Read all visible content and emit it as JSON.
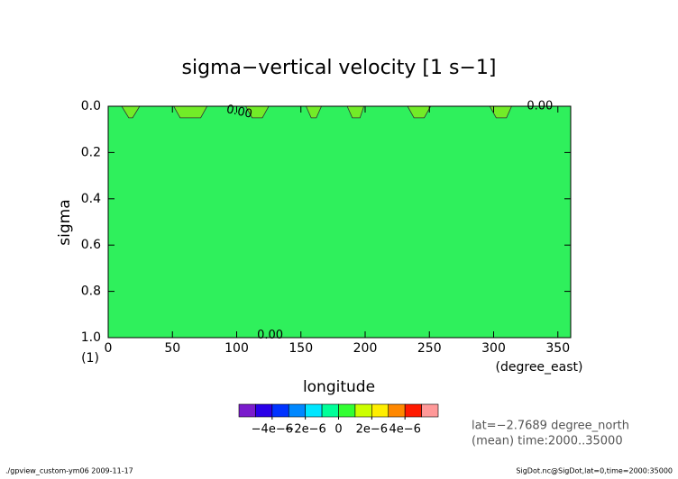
{
  "chart_data": {
    "type": "contour",
    "title": "sigma−vertical velocity [1 s−1]",
    "xlabel": "longitude",
    "xunit": "(degree_east)",
    "ylabel": "sigma",
    "yunit": "(1)",
    "xlim": [
      0,
      360
    ],
    "xticks": [
      0,
      50,
      100,
      150,
      200,
      250,
      300,
      350
    ],
    "ylim": [
      1.0,
      0.0
    ],
    "yticks": [
      {
        "value": 0,
        "label": "0.0"
      },
      0.2,
      0.4,
      0.6,
      0.8,
      {
        "value": 1,
        "label": "1.0"
      }
    ],
    "fill_color": "#2ff05c",
    "patches": [
      {
        "color": "#72ec28",
        "x": [
          10.5,
          16,
          19,
          24.5
        ],
        "y": [
          0,
          0.05,
          0.05,
          0
        ]
      },
      {
        "color": "#72ec28",
        "x": [
          51,
          56,
          72,
          77
        ],
        "y": [
          0,
          0.05,
          0.05,
          0
        ]
      },
      {
        "color": "#72ec28",
        "x": [
          107,
          112,
          120,
          125
        ],
        "y": [
          0,
          0.05,
          0.05,
          0
        ]
      },
      {
        "color": "#72ec28",
        "x": [
          154,
          158,
          162,
          166
        ],
        "y": [
          0,
          0.05,
          0.05,
          0
        ]
      },
      {
        "color": "#72ec28",
        "x": [
          186,
          190,
          196,
          199
        ],
        "y": [
          0,
          0.05,
          0.05,
          0
        ]
      },
      {
        "color": "#72ec28",
        "x": [
          233,
          238,
          246,
          251
        ],
        "y": [
          0,
          0.05,
          0.05,
          0
        ]
      },
      {
        "color": "#72ec28",
        "x": [
          297,
          302,
          310,
          314
        ],
        "y": [
          0,
          0.05,
          0.05,
          0
        ]
      }
    ],
    "contour_labels": [
      {
        "text": "0.00",
        "x": 102,
        "y": 0.025
      },
      {
        "text": "0.00",
        "x": 336,
        "y": 0.0
      },
      {
        "text": "0.00",
        "x": 126,
        "y": 0.99
      }
    ],
    "colorbar": {
      "colors": [
        "#7a1ccc",
        "#2a00e8",
        "#0033ff",
        "#0088ff",
        "#00e6ff",
        "#00ff99",
        "#33ff33",
        "#ccff00",
        "#ffee00",
        "#ff8800",
        "#ff1a00",
        "#ff9999"
      ],
      "levels": [
        -6e-06,
        -5e-06,
        -4e-06,
        -3e-06,
        -2e-06,
        -1e-06,
        0,
        1e-06,
        2e-06,
        3e-06,
        4e-06,
        5e-06,
        6e-06
      ],
      "ticks": [
        {
          "value": -4e-06,
          "label": "−4e−6"
        },
        {
          "value": -2e-06,
          "label": "−2e−6"
        },
        0,
        {
          "value": 2e-06,
          "label": "2e−6"
        },
        {
          "value": 4e-06,
          "label": "4e−6"
        }
      ]
    },
    "notes": [
      "lat=−2.7689 degree_north",
      "(mean) time:2000..35000"
    ],
    "footer_left": "./gpview_custom-ym06  2009-11-17",
    "footer_right": "SigDot.nc@SigDot,lat=0,time=2000:35000"
  }
}
